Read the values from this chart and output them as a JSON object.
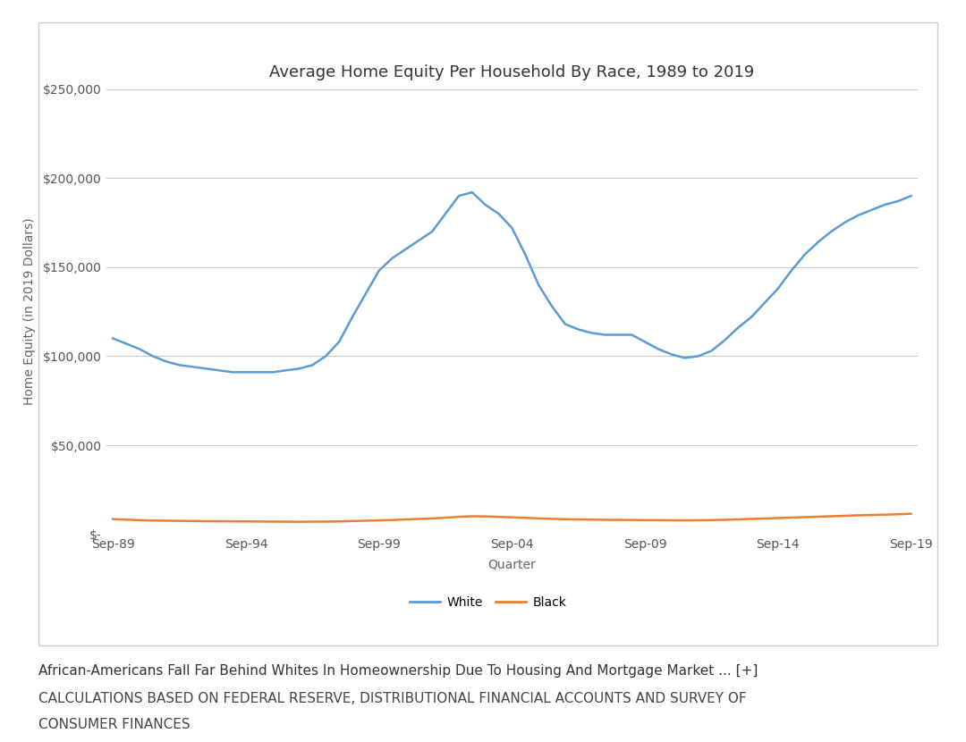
{
  "title": "Average Home Equity Per Household By Race, 1989 to 2019",
  "xlabel": "Quarter",
  "ylabel": "Home Equity (in 2019 Dollars)",
  "x_tick_labels": [
    "Sep-89",
    "Sep-94",
    "Sep-99",
    "Sep-04",
    "Sep-09",
    "Sep-14",
    "Sep-19"
  ],
  "x_tick_positions": [
    0,
    20,
    40,
    60,
    80,
    100,
    120
  ],
  "white_data": [
    110000,
    107000,
    104000,
    100000,
    97000,
    95000,
    94000,
    93000,
    92000,
    91000,
    91000,
    91000,
    91000,
    92000,
    93000,
    95000,
    100000,
    108000,
    122000,
    135000,
    148000,
    155000,
    160000,
    165000,
    170000,
    180000,
    190000,
    192000,
    185000,
    180000,
    172000,
    157000,
    140000,
    128000,
    118000,
    115000,
    113000,
    112000,
    112000,
    112000,
    108000,
    104000,
    101000,
    99000,
    100000,
    103000,
    109000,
    116000,
    122000,
    130000,
    138000,
    148000,
    157000,
    164000,
    170000,
    175000,
    179000,
    182000,
    185000,
    187000,
    190000
  ],
  "black_data": [
    8500,
    8200,
    7900,
    7700,
    7600,
    7500,
    7400,
    7350,
    7300,
    7250,
    7200,
    7150,
    7100,
    7050,
    7000,
    7050,
    7100,
    7200,
    7400,
    7600,
    7800,
    8000,
    8300,
    8600,
    8900,
    9300,
    9800,
    10100,
    10000,
    9800,
    9500,
    9200,
    8900,
    8650,
    8450,
    8300,
    8200,
    8100,
    8050,
    8000,
    7950,
    7900,
    7850,
    7800,
    7850,
    7950,
    8100,
    8350,
    8600,
    8850,
    9100,
    9350,
    9600,
    9850,
    10100,
    10350,
    10600,
    10800,
    11000,
    11200,
    11500
  ],
  "ylim": [
    0,
    250000
  ],
  "y_ticks": [
    0,
    50000,
    100000,
    150000,
    200000,
    250000
  ],
  "y_tick_labels": [
    "$-",
    "$50,000",
    "$100,000",
    "$150,000",
    "$200,000",
    "$250,000"
  ],
  "white_color": "#5B9BD5",
  "black_color": "#ED7D31",
  "background_color": "#FFFFFF",
  "plot_bg_color": "#FFFFFF",
  "grid_color": "#C8C8C8",
  "box_color": "#CCCCCC",
  "legend_labels": [
    "White",
    "Black"
  ],
  "caption_line1": "African-Americans Fall Far Behind Whites In Homeownership Due To Housing And Mortgage Market ... [+]",
  "caption_line2": "CALCULATIONS BASED ON FEDERAL RESERVE, DISTRIBUTIONAL FINANCIAL ACCOUNTS AND SURVEY OF",
  "caption_line3": "CONSUMER FINANCES",
  "title_fontsize": 13,
  "axis_label_fontsize": 10,
  "tick_fontsize": 10,
  "caption1_fontsize": 11,
  "caption23_fontsize": 11
}
